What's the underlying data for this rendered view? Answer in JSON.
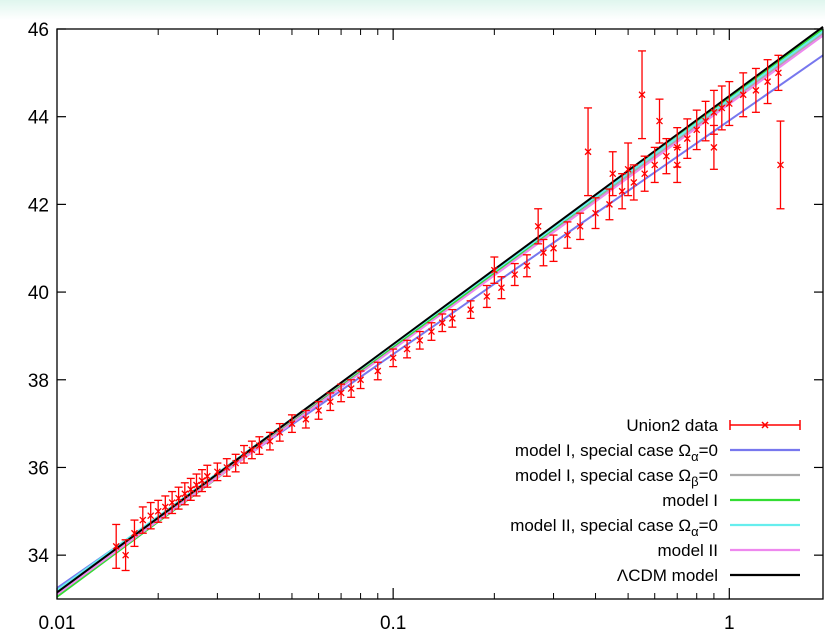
{
  "chart_data": {
    "type": "scatter",
    "title": "",
    "xlabel": "",
    "ylabel": "",
    "xscale": "log",
    "xlim": [
      0.01,
      1.9
    ],
    "ylim": [
      33,
      46
    ],
    "x_ticks": [
      {
        "value": 0.01,
        "label": "0.01"
      },
      {
        "value": 0.1,
        "label": "0.1"
      },
      {
        "value": 1,
        "label": "1"
      }
    ],
    "y_ticks": [
      {
        "value": 34,
        "label": "34"
      },
      {
        "value": 36,
        "label": "36"
      },
      {
        "value": 38,
        "label": "38"
      },
      {
        "value": 40,
        "label": "40"
      },
      {
        "value": 42,
        "label": "42"
      },
      {
        "value": 44,
        "label": "44"
      },
      {
        "value": 46,
        "label": "46"
      }
    ],
    "legend_position": "bottom-right",
    "data_series": {
      "name": "Union2 data",
      "color": "#ff0000",
      "marker": "x-with-errorbars",
      "points": [
        {
          "x": 0.015,
          "y": 34.2,
          "err": 0.5
        },
        {
          "x": 0.016,
          "y": 34.0,
          "err": 0.35
        },
        {
          "x": 0.017,
          "y": 34.5,
          "err": 0.3
        },
        {
          "x": 0.018,
          "y": 34.8,
          "err": 0.3
        },
        {
          "x": 0.019,
          "y": 34.9,
          "err": 0.3
        },
        {
          "x": 0.02,
          "y": 35.0,
          "err": 0.25
        },
        {
          "x": 0.021,
          "y": 35.1,
          "err": 0.25
        },
        {
          "x": 0.022,
          "y": 35.2,
          "err": 0.25
        },
        {
          "x": 0.023,
          "y": 35.3,
          "err": 0.25
        },
        {
          "x": 0.024,
          "y": 35.4,
          "err": 0.25
        },
        {
          "x": 0.025,
          "y": 35.5,
          "err": 0.25
        },
        {
          "x": 0.026,
          "y": 35.6,
          "err": 0.25
        },
        {
          "x": 0.027,
          "y": 35.7,
          "err": 0.25
        },
        {
          "x": 0.028,
          "y": 35.8,
          "err": 0.25
        },
        {
          "x": 0.03,
          "y": 35.9,
          "err": 0.2
        },
        {
          "x": 0.032,
          "y": 36.0,
          "err": 0.2
        },
        {
          "x": 0.034,
          "y": 36.1,
          "err": 0.2
        },
        {
          "x": 0.036,
          "y": 36.3,
          "err": 0.2
        },
        {
          "x": 0.038,
          "y": 36.4,
          "err": 0.2
        },
        {
          "x": 0.04,
          "y": 36.5,
          "err": 0.2
        },
        {
          "x": 0.043,
          "y": 36.6,
          "err": 0.2
        },
        {
          "x": 0.046,
          "y": 36.8,
          "err": 0.2
        },
        {
          "x": 0.05,
          "y": 37.0,
          "err": 0.2
        },
        {
          "x": 0.055,
          "y": 37.1,
          "err": 0.2
        },
        {
          "x": 0.06,
          "y": 37.3,
          "err": 0.2
        },
        {
          "x": 0.065,
          "y": 37.5,
          "err": 0.2
        },
        {
          "x": 0.07,
          "y": 37.7,
          "err": 0.2
        },
        {
          "x": 0.075,
          "y": 37.8,
          "err": 0.2
        },
        {
          "x": 0.08,
          "y": 38.0,
          "err": 0.2
        },
        {
          "x": 0.09,
          "y": 38.2,
          "err": 0.2
        },
        {
          "x": 0.1,
          "y": 38.5,
          "err": 0.2
        },
        {
          "x": 0.11,
          "y": 38.7,
          "err": 0.2
        },
        {
          "x": 0.12,
          "y": 38.9,
          "err": 0.2
        },
        {
          "x": 0.13,
          "y": 39.1,
          "err": 0.2
        },
        {
          "x": 0.14,
          "y": 39.3,
          "err": 0.2
        },
        {
          "x": 0.15,
          "y": 39.4,
          "err": 0.2
        },
        {
          "x": 0.17,
          "y": 39.6,
          "err": 0.2
        },
        {
          "x": 0.19,
          "y": 39.9,
          "err": 0.25
        },
        {
          "x": 0.21,
          "y": 40.1,
          "err": 0.25
        },
        {
          "x": 0.23,
          "y": 40.4,
          "err": 0.25
        },
        {
          "x": 0.25,
          "y": 40.6,
          "err": 0.25
        },
        {
          "x": 0.28,
          "y": 40.9,
          "err": 0.3
        },
        {
          "x": 0.3,
          "y": 41.0,
          "err": 0.3
        },
        {
          "x": 0.33,
          "y": 41.3,
          "err": 0.3
        },
        {
          "x": 0.36,
          "y": 41.5,
          "err": 0.3
        },
        {
          "x": 0.4,
          "y": 41.8,
          "err": 0.35
        },
        {
          "x": 0.44,
          "y": 42.0,
          "err": 0.35
        },
        {
          "x": 0.48,
          "y": 42.3,
          "err": 0.4
        },
        {
          "x": 0.52,
          "y": 42.5,
          "err": 0.4
        },
        {
          "x": 0.56,
          "y": 42.7,
          "err": 0.4
        },
        {
          "x": 0.6,
          "y": 42.9,
          "err": 0.4
        },
        {
          "x": 0.65,
          "y": 43.1,
          "err": 0.4
        },
        {
          "x": 0.7,
          "y": 43.3,
          "err": 0.45
        },
        {
          "x": 0.75,
          "y": 43.5,
          "err": 0.45
        },
        {
          "x": 0.8,
          "y": 43.7,
          "err": 0.45
        },
        {
          "x": 0.85,
          "y": 43.9,
          "err": 0.45
        },
        {
          "x": 0.9,
          "y": 44.1,
          "err": 0.5
        },
        {
          "x": 0.95,
          "y": 44.2,
          "err": 0.5
        },
        {
          "x": 1.0,
          "y": 44.3,
          "err": 0.5
        },
        {
          "x": 1.1,
          "y": 44.5,
          "err": 0.5
        },
        {
          "x": 1.2,
          "y": 44.6,
          "err": 0.5
        },
        {
          "x": 1.3,
          "y": 44.8,
          "err": 0.5
        },
        {
          "x": 1.4,
          "y": 45.0,
          "err": 0.4
        },
        {
          "x": 0.55,
          "y": 44.5,
          "err": 1.0
        },
        {
          "x": 0.62,
          "y": 43.9,
          "err": 0.5
        },
        {
          "x": 0.38,
          "y": 43.2,
          "err": 1.0
        },
        {
          "x": 0.27,
          "y": 41.5,
          "err": 0.4
        },
        {
          "x": 0.2,
          "y": 40.5,
          "err": 0.3
        },
        {
          "x": 1.42,
          "y": 42.9,
          "err": 1.0
        },
        {
          "x": 0.5,
          "y": 42.8,
          "err": 0.6
        },
        {
          "x": 0.45,
          "y": 42.7,
          "err": 0.5
        },
        {
          "x": 0.7,
          "y": 42.9,
          "err": 0.4
        },
        {
          "x": 0.9,
          "y": 43.3,
          "err": 0.5
        }
      ]
    },
    "model_curves": [
      {
        "name": "model I, special case Ω_α=0",
        "color": "#7777ee",
        "y_at_x001": 33.25,
        "y_at_xmax": 45.4
      },
      {
        "name": "model I, special case Ω_β=0",
        "color": "#aaaaaa",
        "y_at_x001": 33.15,
        "y_at_xmax": 45.9
      },
      {
        "name": "model I",
        "color": "#33dd33",
        "y_at_x001": 33.05,
        "y_at_xmax": 46.0
      },
      {
        "name": "model II, special case Ω_α=0",
        "color": "#66eeee",
        "y_at_x001": 33.2,
        "y_at_xmax": 45.95
      },
      {
        "name": "model II",
        "color": "#ee88ee",
        "y_at_x001": 33.1,
        "y_at_xmax": 45.85
      },
      {
        "name": "ΛCDM model",
        "color": "#000000",
        "y_at_x001": 33.15,
        "y_at_xmax": 46.05
      }
    ],
    "legend": [
      {
        "label": "Union2 data",
        "color": "#ff0000",
        "style": "errorbar"
      },
      {
        "label_main": "model I, special case Ω",
        "label_sub": "α",
        "label_tail": "=0",
        "color": "#7777ee",
        "style": "line"
      },
      {
        "label_main": "model I, special case Ω",
        "label_sub": "β",
        "label_tail": "=0",
        "color": "#aaaaaa",
        "style": "line"
      },
      {
        "label": "model I",
        "color": "#33dd33",
        "style": "line"
      },
      {
        "label_main": "model II, special case Ω",
        "label_sub": "α",
        "label_tail": "=0",
        "color": "#66eeee",
        "style": "line"
      },
      {
        "label": "model II",
        "color": "#ee88ee",
        "style": "line"
      },
      {
        "label": "ΛCDM model",
        "color": "#000000",
        "style": "line"
      }
    ]
  }
}
